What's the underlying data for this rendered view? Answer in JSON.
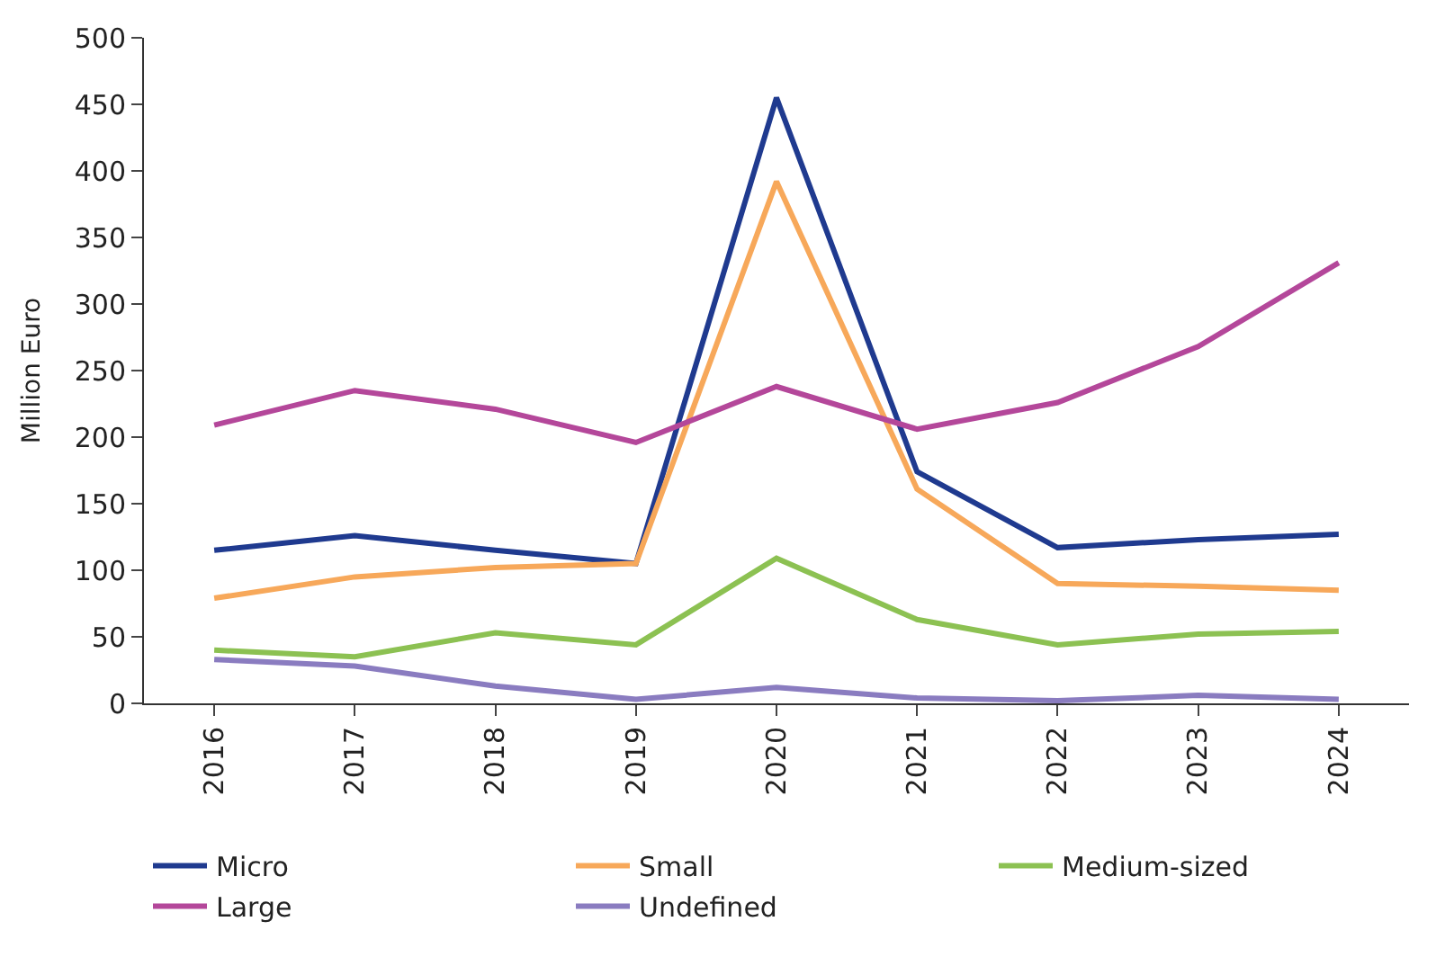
{
  "chart_data": {
    "type": "line",
    "ylabel": "Million Euro",
    "categories": [
      "2016",
      "2017",
      "2018",
      "2019",
      "2020",
      "2021",
      "2022",
      "2023",
      "2024"
    ],
    "ylim": [
      0,
      500
    ],
    "yticks": [
      0,
      50,
      100,
      150,
      200,
      250,
      300,
      350,
      400,
      450,
      500
    ],
    "legend": "bottom",
    "marker": "none",
    "line_style": "solid",
    "series": [
      {
        "name": "Micro",
        "color": "#1f3a8f",
        "values": [
          115,
          126,
          115,
          105,
          455,
          174,
          117,
          123,
          127
        ]
      },
      {
        "name": "Small",
        "color": "#f7a85a",
        "values": [
          79,
          95,
          102,
          105,
          392,
          161,
          90,
          88,
          85
        ]
      },
      {
        "name": "Medium-sized",
        "color": "#8cc152",
        "values": [
          40,
          35,
          53,
          44,
          109,
          63,
          44,
          52,
          54
        ]
      },
      {
        "name": "Large",
        "color": "#b4479a",
        "values": [
          209,
          235,
          221,
          196,
          238,
          206,
          226,
          268,
          331
        ]
      },
      {
        "name": "Undefined",
        "color": "#8a7cc0",
        "values": [
          33,
          28,
          13,
          3,
          12,
          4,
          2,
          6,
          3
        ]
      }
    ]
  }
}
